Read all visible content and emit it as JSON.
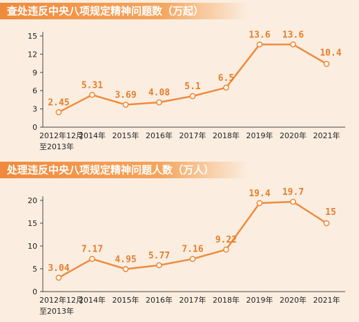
{
  "chart_data": [
    {
      "type": "line",
      "title": "查处违反中央八项规定精神问题数（万起）",
      "categories": [
        "2012年12月\n至2013年",
        "2014年",
        "2015年",
        "2016年",
        "2017年",
        "2018年",
        "2019年",
        "2020年",
        "2021年"
      ],
      "values": [
        2.45,
        5.31,
        3.69,
        4.08,
        5.1,
        6.5,
        13.6,
        13.6,
        10.4
      ],
      "value_labels": [
        "2.45",
        "5.31",
        "3.69",
        "4.08",
        "5.1",
        "6.5",
        "13.6",
        "13.6",
        "10.4"
      ],
      "yticks": [
        0,
        3,
        6,
        9,
        12,
        15
      ],
      "ylim": [
        0,
        15
      ],
      "xlabel": "",
      "ylabel": "",
      "color": "#f08a3c"
    },
    {
      "type": "line",
      "title": "处理违反中央八项规定精神问题人数（万人）",
      "categories": [
        "2012年12月\n至2013年",
        "2014年",
        "2015年",
        "2016年",
        "2017年",
        "2018年",
        "2019年",
        "2020年",
        "2021年"
      ],
      "values": [
        3.04,
        7.17,
        4.95,
        5.77,
        7.16,
        9.22,
        19.4,
        19.7,
        15
      ],
      "value_labels": [
        "3.04",
        "7.17",
        "4.95",
        "5.77",
        "7.16",
        "9.22",
        "19.4",
        "19.7",
        "15"
      ],
      "yticks": [
        0,
        5,
        10,
        15,
        20
      ],
      "ylim": [
        0,
        20
      ],
      "xlabel": "",
      "ylabel": "",
      "color": "#f08a3c"
    }
  ]
}
